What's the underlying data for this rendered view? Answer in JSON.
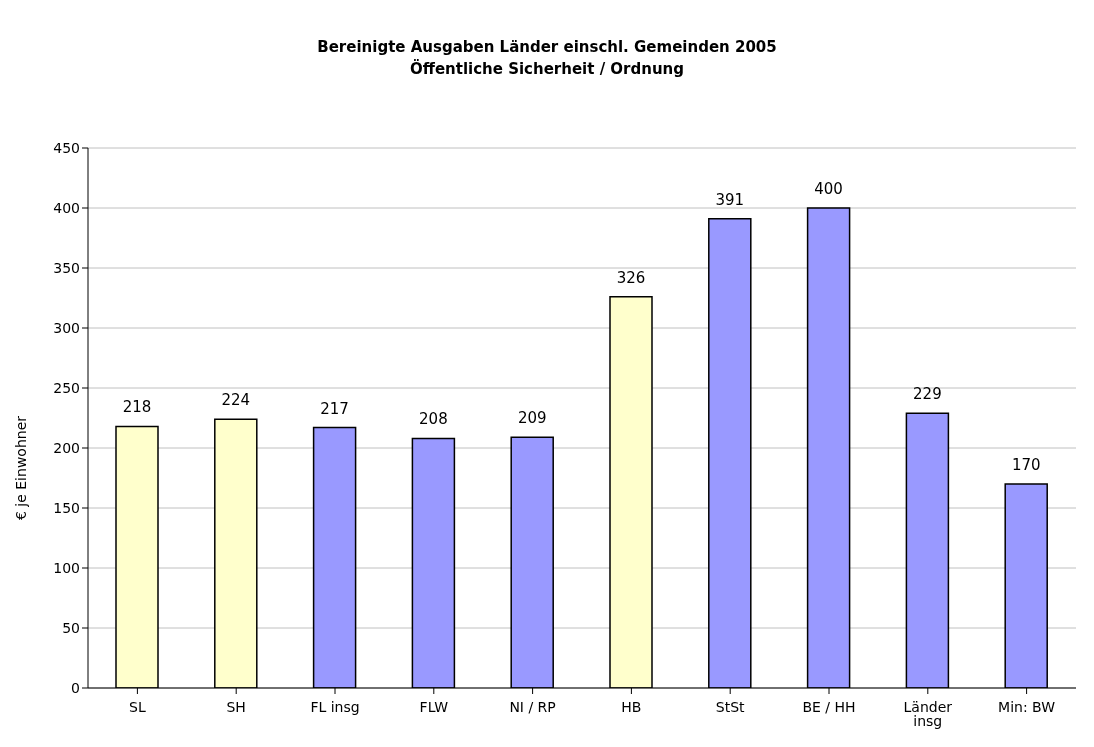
{
  "chart_data": {
    "type": "bar",
    "title": "Bereinigte Ausgaben Länder einschl. Gemeinden 2005",
    "subtitle": "Öffentliche Sicherheit / Ordnung",
    "ylabel": "€ je Einwohner",
    "categories": [
      "SL",
      "SH",
      "FL insg",
      "FLW",
      "NI / RP",
      "HB",
      "StSt",
      "BE / HH",
      "Länder insg",
      "Min: BW"
    ],
    "values": [
      218,
      224,
      217,
      208,
      209,
      326,
      391,
      400,
      229,
      170
    ],
    "colors": [
      "#ffffcc",
      "#ffffcc",
      "#9999ff",
      "#9999ff",
      "#9999ff",
      "#ffffcc",
      "#9999ff",
      "#9999ff",
      "#9999ff",
      "#9999ff"
    ],
    "ylim": [
      0,
      450
    ],
    "yticks": [
      0,
      50,
      100,
      150,
      200,
      250,
      300,
      350,
      400,
      450
    ],
    "grid": "y",
    "data_labels": true
  }
}
